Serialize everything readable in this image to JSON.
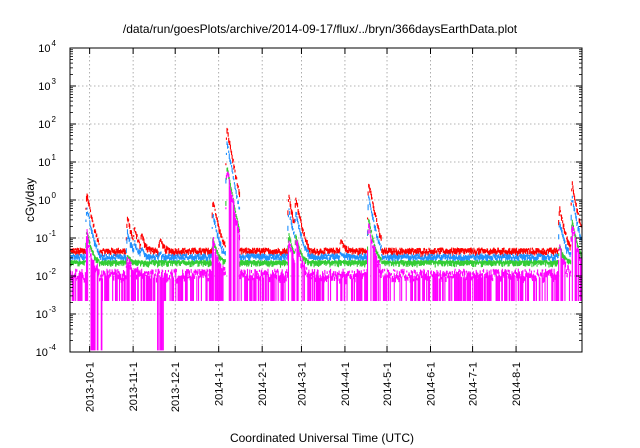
{
  "chart_data": {
    "type": "line",
    "title": "/data/run/goesPlots/archive/2014-09-17/flux/../bryn/366daysEarthData.plot",
    "xlabel": "Coordinated Universal Time (UTC)",
    "ylabel": "cGy/day",
    "yscale": "log",
    "ylim": [
      0.0001,
      10000
    ],
    "xlim": [
      "2013-09-17",
      "2014-09-17"
    ],
    "grid": true,
    "y_ticks": [
      {
        "value": 0.0001,
        "base": "10",
        "exp": "-4"
      },
      {
        "value": 0.001,
        "base": "10",
        "exp": "-3"
      },
      {
        "value": 0.01,
        "base": "10",
        "exp": "-2"
      },
      {
        "value": 0.1,
        "base": "10",
        "exp": "-1"
      },
      {
        "value": 1,
        "base": "10",
        "exp": "0"
      },
      {
        "value": 10,
        "base": "10",
        "exp": "1"
      },
      {
        "value": 100,
        "base": "10",
        "exp": "2"
      },
      {
        "value": 1000,
        "base": "10",
        "exp": "3"
      },
      {
        "value": 10000,
        "base": "10",
        "exp": "4"
      }
    ],
    "x_ticks": [
      {
        "label": "2013-10-1",
        "date": "2013-10-01"
      },
      {
        "label": "2013-11-1",
        "date": "2013-11-01"
      },
      {
        "label": "2013-12-1",
        "date": "2013-12-01"
      },
      {
        "label": "2014-1-1",
        "date": "2014-01-01"
      },
      {
        "label": "2014-2-1",
        "date": "2014-02-01"
      },
      {
        "label": "2014-3-1",
        "date": "2014-03-01"
      },
      {
        "label": "2014-4-1",
        "date": "2014-04-01"
      },
      {
        "label": "2014-5-1",
        "date": "2014-05-01"
      },
      {
        "label": "2014-6-1",
        "date": "2014-06-01"
      },
      {
        "label": "2014-7-1",
        "date": "2014-07-01"
      },
      {
        "label": "2014-8-1",
        "date": "2014-08-01"
      }
    ],
    "series": [
      {
        "color": "#ff0000",
        "baseline": 0.05,
        "noise": 0.25
      },
      {
        "color": "#1e8fff",
        "baseline": 0.035,
        "noise": 0.25
      },
      {
        "color": "#33cc33",
        "baseline": 0.025,
        "noise": 0.12
      },
      {
        "color": "#ff00ff",
        "baseline": 0.012,
        "noise": 0.6
      }
    ],
    "events": [
      {
        "date": "2013-09-29",
        "peak": 1.7
      },
      {
        "date": "2013-10-28",
        "peak": 0.38
      },
      {
        "date": "2013-11-02",
        "peak": 0.2
      },
      {
        "date": "2013-11-07",
        "peak": 0.14
      },
      {
        "date": "2013-11-20",
        "peak": 0.1
      },
      {
        "date": "2013-12-28",
        "peak": 1.1
      },
      {
        "date": "2014-01-07",
        "peak": 80
      },
      {
        "date": "2014-02-20",
        "peak": 1.4
      },
      {
        "date": "2014-02-25",
        "peak": 1.3
      },
      {
        "date": "2014-03-29",
        "peak": 0.1
      },
      {
        "date": "2014-04-18",
        "peak": 3.3
      },
      {
        "date": "2014-09-01",
        "peak": 0.7
      },
      {
        "date": "2014-09-10",
        "peak": 3.0
      }
    ]
  }
}
